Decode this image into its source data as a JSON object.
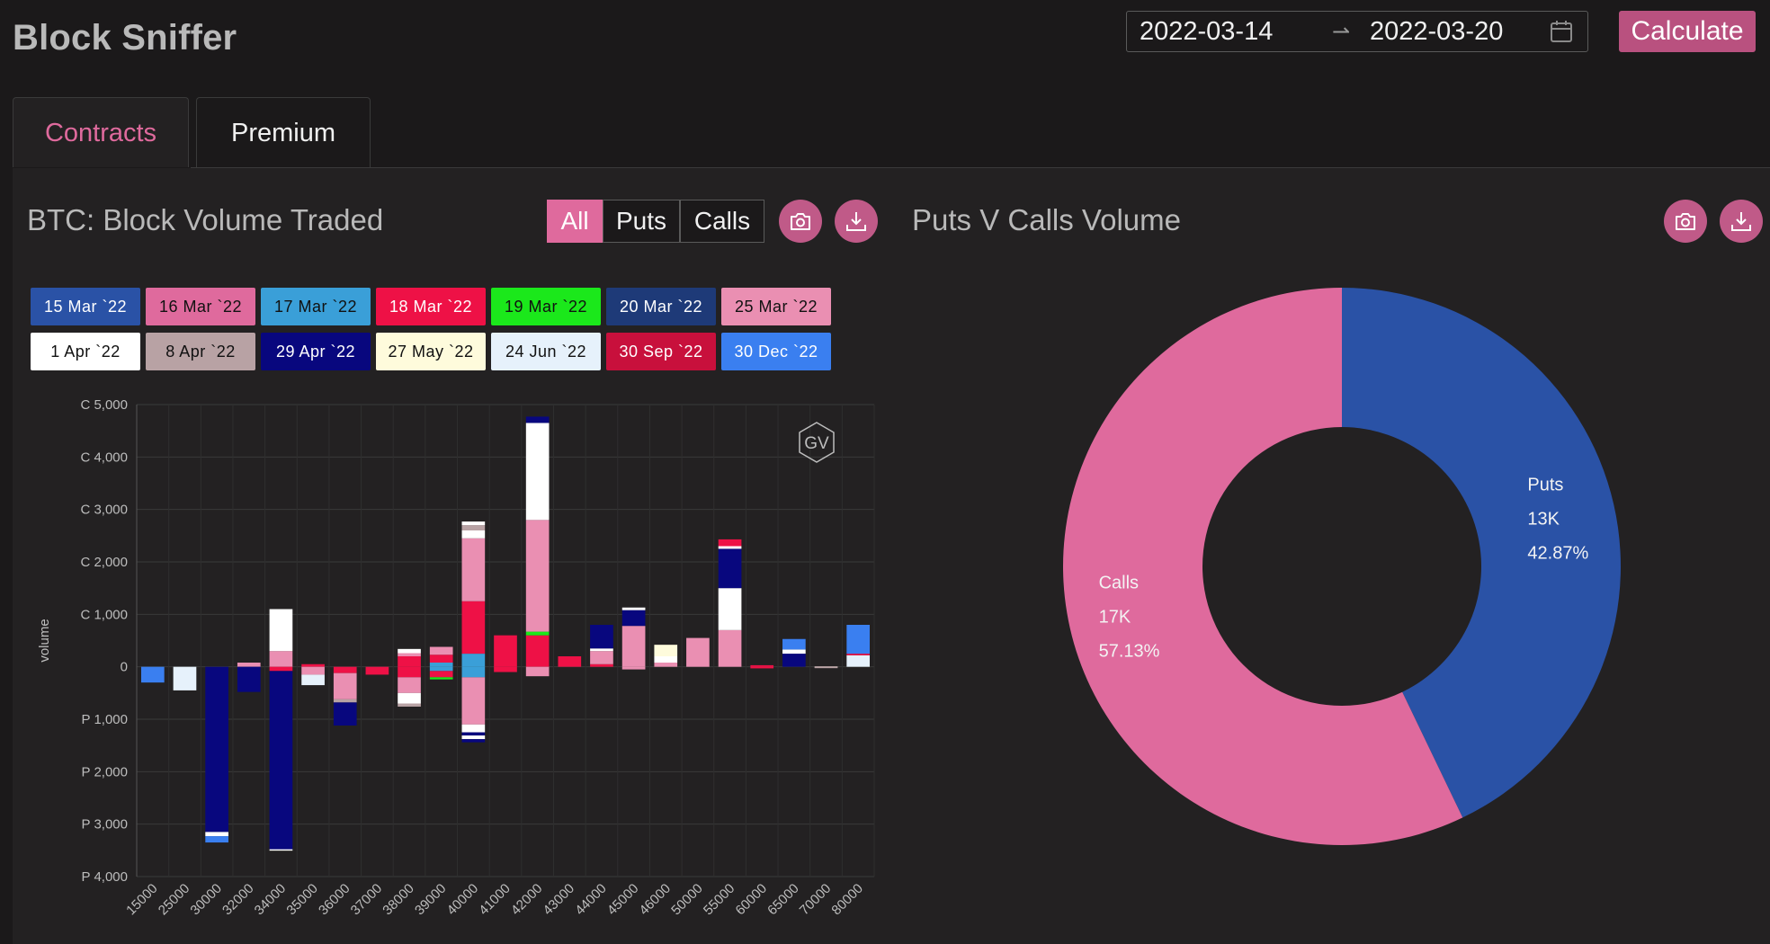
{
  "app": {
    "title": "Block Sniffer"
  },
  "header": {
    "date_start": "2022-03-14",
    "date_end": "2022-03-20",
    "calculate_label": "Calculate"
  },
  "tabs": [
    {
      "label": "Contracts",
      "active": true
    },
    {
      "label": "Premium",
      "active": false
    }
  ],
  "left_panel": {
    "title": "BTC: Block Volume Traded",
    "filters": [
      "All",
      "Puts",
      "Calls"
    ],
    "selected_filter": "All",
    "watermark": "GV"
  },
  "right_panel": {
    "title": "Puts V Calls Volume"
  },
  "colors": {
    "accent": "#df6a9d",
    "background": "#1b191a",
    "panel": "#232122",
    "puts": "#2a52a6",
    "calls": "#df6a9d"
  },
  "legend": [
    {
      "label": "15 Mar `22",
      "color": "#2a52a6",
      "text": "#ffffff"
    },
    {
      "label": "16 Mar `22",
      "color": "#df6a9d",
      "text": "#111111"
    },
    {
      "label": "17 Mar `22",
      "color": "#3a9fd8",
      "text": "#111111"
    },
    {
      "label": "18 Mar `22",
      "color": "#ee1146",
      "text": "#ffffff"
    },
    {
      "label": "19 Mar `22",
      "color": "#1be81b",
      "text": "#111111"
    },
    {
      "label": "20 Mar `22",
      "color": "#1e3a78",
      "text": "#ffffff"
    },
    {
      "label": "25 Mar `22",
      "color": "#ea8fb2",
      "text": "#111111"
    },
    {
      "label": "1 Apr `22",
      "color": "#ffffff",
      "text": "#111111"
    },
    {
      "label": "8 Apr `22",
      "color": "#b8a2a4",
      "text": "#111111"
    },
    {
      "label": "29 Apr `22",
      "color": "#08077e",
      "text": "#ffffff"
    },
    {
      "label": "27 May `22",
      "color": "#fefbdc",
      "text": "#111111"
    },
    {
      "label": "24 Jun `22",
      "color": "#e6f1fb",
      "text": "#111111"
    },
    {
      "label": "30 Sep `22",
      "color": "#c8103c",
      "text": "#ffffff"
    },
    {
      "label": "30 Dec `22",
      "color": "#3a7ff0",
      "text": "#ffffff"
    }
  ],
  "chart_data": [
    {
      "type": "bar",
      "stacked": true,
      "ylabel": "volume",
      "ylim": [
        -4000,
        5000
      ],
      "yticks": [
        {
          "value": 5000,
          "label": "C 5,000"
        },
        {
          "value": 4000,
          "label": "C 4,000"
        },
        {
          "value": 3000,
          "label": "C 3,000"
        },
        {
          "value": 2000,
          "label": "C 2,000"
        },
        {
          "value": 1000,
          "label": "C 1,000"
        },
        {
          "value": 0,
          "label": "0"
        },
        {
          "value": -1000,
          "label": "P 1,000"
        },
        {
          "value": -2000,
          "label": "P 2,000"
        },
        {
          "value": -3000,
          "label": "P 3,000"
        },
        {
          "value": -4000,
          "label": "P 4,000"
        }
      ],
      "categories": [
        "15000",
        "25000",
        "30000",
        "32000",
        "34000",
        "35000",
        "36000",
        "37000",
        "38000",
        "39000",
        "40000",
        "41000",
        "42000",
        "43000",
        "44000",
        "45000",
        "46000",
        "50000",
        "55000",
        "60000",
        "65000",
        "70000",
        "80000"
      ],
      "bars": [
        {
          "x": "15000",
          "segments": [
            {
              "series": "30 Dec `22",
              "value": -300
            }
          ]
        },
        {
          "x": "25000",
          "segments": [
            {
              "series": "24 Jun `22",
              "value": -450
            }
          ]
        },
        {
          "x": "30000",
          "segments": [
            {
              "series": "29 Apr `22",
              "value": -3150
            },
            {
              "series": "1 Apr `22",
              "value": -80
            },
            {
              "series": "30 Dec `22",
              "value": -120
            }
          ]
        },
        {
          "x": "32000",
          "segments": [
            {
              "series": "25 Mar `22",
              "value": 80
            },
            {
              "series": "29 Apr `22",
              "value": -480
            }
          ]
        },
        {
          "x": "34000",
          "segments": [
            {
              "series": "25 Mar `22",
              "value": 300
            },
            {
              "series": "1 Apr `22",
              "value": 800
            },
            {
              "series": "18 Mar `22",
              "value": -80
            },
            {
              "series": "29 Apr `22",
              "value": -3400
            },
            {
              "series": "1 Apr `22",
              "value": -20
            }
          ]
        },
        {
          "x": "35000",
          "segments": [
            {
              "series": "18 Mar `22",
              "value": 50
            },
            {
              "series": "25 Mar `22",
              "value": -150
            },
            {
              "series": "24 Jun `22",
              "value": -200
            }
          ]
        },
        {
          "x": "36000",
          "segments": [
            {
              "series": "18 Mar `22",
              "value": -120
            },
            {
              "series": "25 Mar `22",
              "value": -500
            },
            {
              "series": "8 Apr `22",
              "value": -60
            },
            {
              "series": "29 Apr `22",
              "value": -440
            }
          ]
        },
        {
          "x": "37000",
          "segments": [
            {
              "series": "18 Mar `22",
              "value": -150
            }
          ]
        },
        {
          "x": "38000",
          "segments": [
            {
              "series": "18 Mar `22",
              "value": 200
            },
            {
              "series": "25 Mar `22",
              "value": 60
            },
            {
              "series": "1 Apr `22",
              "value": 80
            },
            {
              "series": "18 Mar `22",
              "value": -200
            },
            {
              "series": "25 Mar `22",
              "value": -300
            },
            {
              "series": "1 Apr `22",
              "value": -200
            },
            {
              "series": "8 Apr `22",
              "value": -60
            }
          ]
        },
        {
          "x": "39000",
          "segments": [
            {
              "series": "17 Mar `22",
              "value": 80
            },
            {
              "series": "18 Mar `22",
              "value": 150
            },
            {
              "series": "25 Mar `22",
              "value": 150
            },
            {
              "series": "17 Mar `22",
              "value": -80
            },
            {
              "series": "18 Mar `22",
              "value": -120
            },
            {
              "series": "19 Mar `22",
              "value": -40
            }
          ]
        },
        {
          "x": "40000",
          "segments": [
            {
              "series": "17 Mar `22",
              "value": 250
            },
            {
              "series": "18 Mar `22",
              "value": 1000
            },
            {
              "series": "25 Mar `22",
              "value": 1200
            },
            {
              "series": "1 Apr `22",
              "value": 150
            },
            {
              "series": "8 Apr `22",
              "value": 100
            },
            {
              "series": "1 Apr `22",
              "value": 70
            },
            {
              "series": "17 Mar `22",
              "value": -200
            },
            {
              "series": "25 Mar `22",
              "value": -900
            },
            {
              "series": "1 Apr `22",
              "value": -150
            },
            {
              "series": "29 Apr `22",
              "value": -60
            },
            {
              "series": "1 Apr `22",
              "value": -70
            },
            {
              "series": "29 Apr `22",
              "value": -60
            }
          ]
        },
        {
          "x": "41000",
          "segments": [
            {
              "series": "18 Mar `22",
              "value": 600
            },
            {
              "series": "18 Mar `22",
              "value": -100
            }
          ]
        },
        {
          "x": "42000",
          "segments": [
            {
              "series": "18 Mar `22",
              "value": 600
            },
            {
              "series": "19 Mar `22",
              "value": 70
            },
            {
              "series": "25 Mar `22",
              "value": 2130
            },
            {
              "series": "1 Apr `22",
              "value": 1850
            },
            {
              "series": "29 Apr `22",
              "value": 120
            },
            {
              "series": "25 Mar `22",
              "value": -180
            }
          ]
        },
        {
          "x": "43000",
          "segments": [
            {
              "series": "18 Mar `22",
              "value": 200
            }
          ]
        },
        {
          "x": "44000",
          "segments": [
            {
              "series": "18 Mar `22",
              "value": 50
            },
            {
              "series": "25 Mar `22",
              "value": 250
            },
            {
              "series": "1 Apr `22",
              "value": 50
            },
            {
              "series": "29 Apr `22",
              "value": 450
            }
          ]
        },
        {
          "x": "45000",
          "segments": [
            {
              "series": "25 Mar `22",
              "value": 780
            },
            {
              "series": "29 Apr `22",
              "value": 300
            },
            {
              "series": "1 Apr `22",
              "value": 50
            },
            {
              "series": "25 Mar `22",
              "value": -50
            }
          ]
        },
        {
          "x": "46000",
          "segments": [
            {
              "series": "25 Mar `22",
              "value": 80
            },
            {
              "series": "1 Apr `22",
              "value": 120
            },
            {
              "series": "27 May `22",
              "value": 220
            }
          ]
        },
        {
          "x": "50000",
          "segments": [
            {
              "series": "25 Mar `22",
              "value": 550
            }
          ]
        },
        {
          "x": "55000",
          "segments": [
            {
              "series": "25 Mar `22",
              "value": 700
            },
            {
              "series": "1 Apr `22",
              "value": 800
            },
            {
              "series": "29 Apr `22",
              "value": 750
            },
            {
              "series": "1 Apr `22",
              "value": 50
            },
            {
              "series": "18 Mar `22",
              "value": 130
            }
          ]
        },
        {
          "x": "60000",
          "segments": [
            {
              "series": "18 Mar `22",
              "value": 30
            },
            {
              "series": "18 Mar `22",
              "value": -30
            }
          ]
        },
        {
          "x": "65000",
          "segments": [
            {
              "series": "29 Apr `22",
              "value": 250
            },
            {
              "series": "1 Apr `22",
              "value": 80
            },
            {
              "series": "30 Dec `22",
              "value": 200
            }
          ]
        },
        {
          "x": "70000",
          "segments": [
            {
              "series": "8 Apr `22",
              "value": 10
            },
            {
              "series": "8 Apr `22",
              "value": -15
            }
          ]
        },
        {
          "x": "80000",
          "segments": [
            {
              "series": "24 Jun `22",
              "value": 220
            },
            {
              "series": "18 Mar `22",
              "value": 30
            },
            {
              "series": "30 Dec `22",
              "value": 550
            }
          ]
        }
      ]
    },
    {
      "type": "pie",
      "donut": true,
      "slices": [
        {
          "name": "Puts",
          "value_label": "13K",
          "percent": 42.87,
          "color": "#2a52a6"
        },
        {
          "name": "Calls",
          "value_label": "17K",
          "percent": 57.13,
          "color": "#df6a9d"
        }
      ]
    }
  ]
}
